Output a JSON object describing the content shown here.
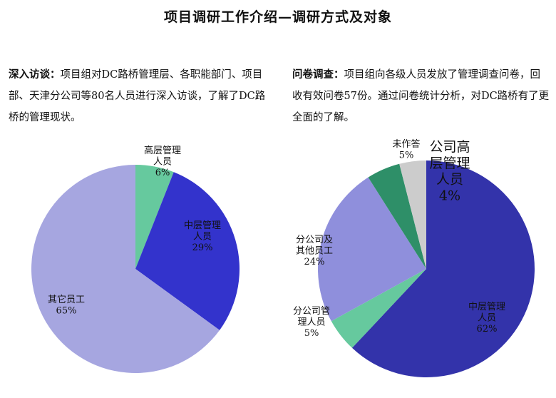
{
  "page_title": "项目调研工作介绍—调研方式及对象",
  "intro_left": {
    "heading": "深入访谈：",
    "body": "项目组对DC路桥管理层、各职能部门、项目部、天津分公司等80名人员进行深入访谈，了解了DC路桥的管理现状。"
  },
  "intro_right": {
    "heading": "问卷调查：",
    "body": "项目组向各级人员发放了管理调查问卷，回收有效问卷57份。通过问卷统计分析，对DC路桥有了更全面的了解。"
  },
  "chart_data": [
    {
      "type": "pie",
      "title": "",
      "slices": [
        {
          "label": "高层管理人员",
          "label_lines": [
            "高层管理",
            "人员"
          ],
          "value": 6,
          "value_label": "6%",
          "color": "#66c99e"
        },
        {
          "label": "中层管理人员",
          "label_lines": [
            "中层管理",
            "人员"
          ],
          "value": 29,
          "value_label": "29%",
          "color": "#3333cc"
        },
        {
          "label": "其它员工",
          "label_lines": [
            "其它员工"
          ],
          "value": 65,
          "value_label": "65%",
          "color": "#a6a6e0"
        }
      ]
    },
    {
      "type": "pie",
      "title": "",
      "slices": [
        {
          "label": "中层管理人员",
          "label_lines": [
            "中层管理",
            "人员"
          ],
          "value": 62,
          "value_label": "62%",
          "color": "#3333aa"
        },
        {
          "label": "分公司管理人员",
          "label_lines": [
            "分公司管",
            "理人员"
          ],
          "value": 5,
          "value_label": "5%",
          "color": "#66c99e"
        },
        {
          "label": "分公司及其他员工",
          "label_lines": [
            "分公司及",
            "其他员工"
          ],
          "value": 24,
          "value_label": "24%",
          "color": "#8f8fdc"
        },
        {
          "label": "未作答",
          "label_lines": [
            "未作答"
          ],
          "value": 5,
          "value_label": "5%",
          "color": "#2e8f68"
        },
        {
          "label": "公司高层管理人员",
          "label_lines": [
            "公司高",
            "层管理",
            "人员"
          ],
          "value": 4,
          "value_label": "4%",
          "color": "#cccccc"
        }
      ]
    }
  ]
}
